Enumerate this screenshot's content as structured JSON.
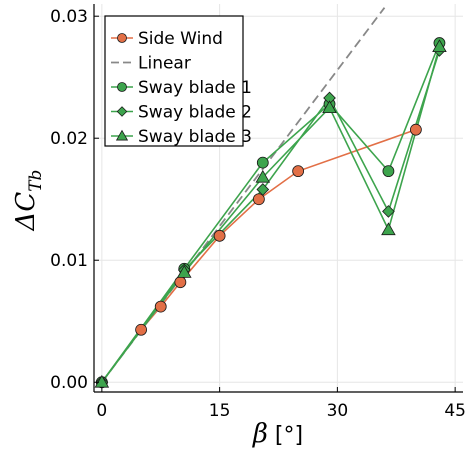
{
  "chart_data": {
    "type": "line",
    "xlabel_symbol": "β",
    "xlabel_unit": " [°]",
    "ylabel_main": "ΔC",
    "ylabel_sub": "Tb",
    "xlim": [
      -1,
      46
    ],
    "ylim": [
      -0.0008,
      0.031
    ],
    "xticks": [
      0,
      15,
      30,
      45
    ],
    "xtick_labels": [
      "0",
      "15",
      "30",
      "45"
    ],
    "yticks": [
      0.0,
      0.01,
      0.02,
      0.03
    ],
    "ytick_labels": [
      "0.00",
      "0.01",
      "0.02",
      "0.03"
    ],
    "grid": true,
    "legend_position": "top-left",
    "series": [
      {
        "name": "Side Wind",
        "color": "#e26f46",
        "marker": "circle",
        "line_style": "solid",
        "x": [
          0,
          5,
          7.5,
          10,
          15,
          20,
          25,
          40
        ],
        "y": [
          0.0,
          0.0043,
          0.0062,
          0.0082,
          0.012,
          0.015,
          0.0173,
          0.0207
        ]
      },
      {
        "name": "Linear",
        "color": "#888888",
        "marker": "none",
        "line_style": "dashed",
        "x": [
          0,
          36
        ],
        "y": [
          0.0,
          0.0307
        ]
      },
      {
        "name": "Sway blade 1",
        "color": "#3da44d",
        "marker": "circle",
        "line_style": "solid",
        "x": [
          0,
          10.5,
          20.5,
          29,
          36.5,
          43
        ],
        "y": [
          0.0,
          0.0093,
          0.018,
          0.0228,
          0.0173,
          0.0278
        ]
      },
      {
        "name": "Sway blade 2",
        "color": "#3da44d",
        "marker": "diamond",
        "line_style": "solid",
        "x": [
          0,
          10.5,
          20.5,
          29,
          36.5,
          43
        ],
        "y": [
          0.0,
          0.0092,
          0.0158,
          0.0233,
          0.014,
          0.0272
        ]
      },
      {
        "name": "Sway blade 3",
        "color": "#3da44d",
        "marker": "triangle",
        "line_style": "solid",
        "x": [
          0,
          10.5,
          20.5,
          29,
          36.5,
          43
        ],
        "y": [
          0.0,
          0.009,
          0.0168,
          0.0225,
          0.0125,
          0.0275
        ]
      }
    ]
  }
}
